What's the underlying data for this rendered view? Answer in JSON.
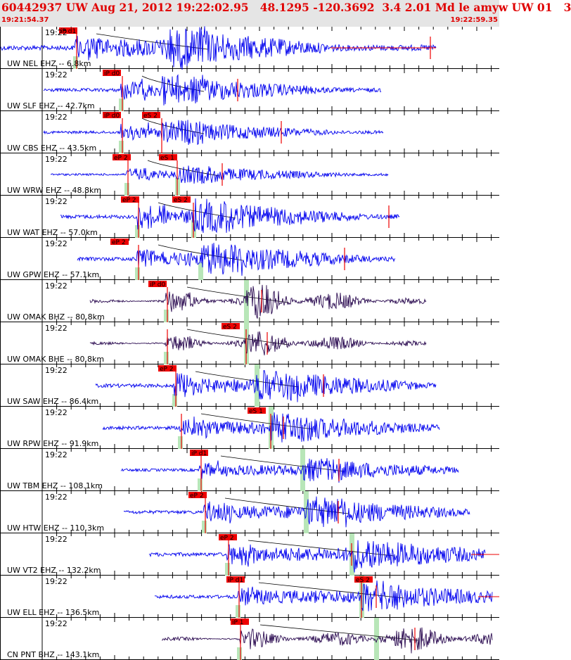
{
  "header": {
    "title": "60442937 UW Aug 21, 2012 19:22:02.95   48.1295 -120.3692  3.4 2.01 Md le amyw UW 01   3",
    "start_time": "19:21:54.37",
    "end_time": "19:22:59.35"
  },
  "colors": {
    "vertical": "#0000ee",
    "broadband": "#2a0a50",
    "pick": "#ee0000",
    "window": "#b8e6b8"
  },
  "traces": [
    {
      "label": "UW NEL EHZ -- 6.8km",
      "time": "19:22",
      "color": "vertical",
      "picks": [
        "iP d1"
      ]
    },
    {
      "label": "UW SLF EHZ -- 42.7km",
      "time": "19:22",
      "color": "vertical",
      "picks": [
        "iP d0"
      ]
    },
    {
      "label": "UW CBS EHZ -- 43.5km",
      "time": "19:22",
      "color": "vertical",
      "picks": [
        "iP d0",
        "eS 2"
      ]
    },
    {
      "label": "UW WRW EHZ -- 48.8km",
      "time": "19:22",
      "color": "vertical",
      "picks": [
        "eP 2",
        "eS 1"
      ]
    },
    {
      "label": "UW WAT EHZ -- 57.0km",
      "time": "19:22",
      "color": "vertical",
      "picks": [
        "eP 2",
        "eS 2"
      ]
    },
    {
      "label": "UW GPW EHZ -- 57.1km",
      "time": "19:22",
      "color": "vertical",
      "picks": [
        "eP 2"
      ]
    },
    {
      "label": "UW OMAK BHZ -- 80.8km",
      "time": "19:22",
      "color": "broadband",
      "picks": [
        "iP d0"
      ]
    },
    {
      "label": "UW OMAK BHE -- 80.8km",
      "time": "19:22",
      "color": "broadband",
      "picks": [
        "eS 2"
      ]
    },
    {
      "label": "UW SAW EHZ -- 86.4km",
      "time": "19:22",
      "color": "vertical",
      "picks": [
        "eP 2"
      ]
    },
    {
      "label": "UW RPW EHZ -- 91.9km",
      "time": "19:22",
      "color": "vertical",
      "picks": [
        "eS 1"
      ]
    },
    {
      "label": "UW TBM EHZ -- 108.1km",
      "time": "19:22",
      "color": "vertical",
      "picks": [
        "iP d1"
      ]
    },
    {
      "label": "UW HTW EHZ -- 110.3km",
      "time": "19:22",
      "color": "vertical",
      "picks": [
        "eP 2"
      ]
    },
    {
      "label": "UW VT2 EHZ -- 132.2km",
      "time": "19:22",
      "color": "vertical",
      "picks": [
        "eP 2"
      ]
    },
    {
      "label": "UW ELL EHZ -- 136.5km",
      "time": "19:22",
      "color": "vertical",
      "picks": [
        "iP d1",
        "eS 2"
      ]
    },
    {
      "label": "CN PNT BHZ -- 143.1km",
      "time": "19:22",
      "color": "broadband",
      "picks": [
        "iP 1"
      ]
    }
  ]
}
